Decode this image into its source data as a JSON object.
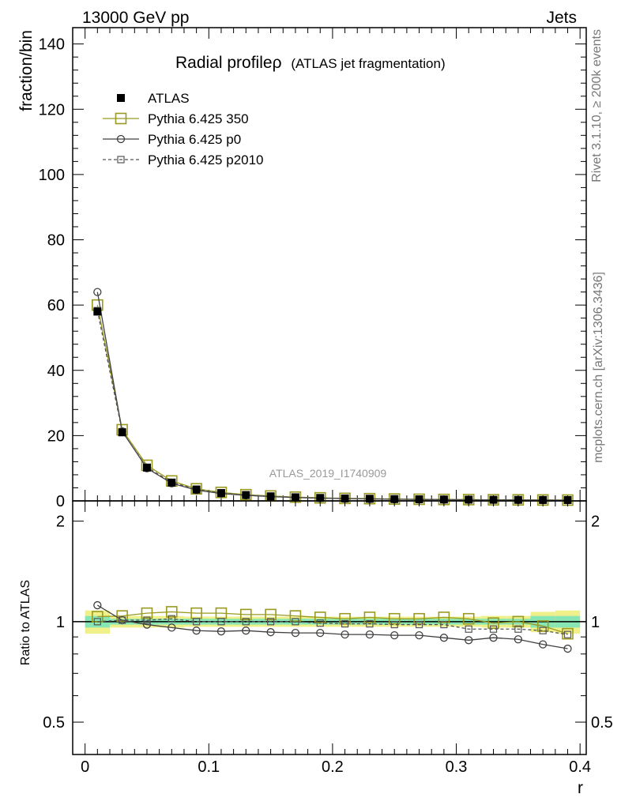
{
  "header": {
    "left": "13000 GeV pp",
    "right": "Jets"
  },
  "side_labels": {
    "top": "Rivet 3.1.10, ≥ 200k events",
    "bottom": "mcplots.cern.ch [arXiv:1306.3436]"
  },
  "chart_data": [
    {
      "type": "line",
      "title": "Radial profileρ",
      "subtitle": "(ATLAS jet fragmentation)",
      "watermark": "ATLAS_2019_I1740909",
      "ylabel": "fraction/bin",
      "xlabel": "",
      "xlim": [
        0,
        0.4
      ],
      "ylim": [
        0,
        145
      ],
      "y_ticks": [
        0,
        20,
        40,
        60,
        80,
        100,
        120,
        140
      ],
      "legend": [
        "ATLAS",
        "Pythia 6.425 350",
        "Pythia 6.425 p0",
        "Pythia 6.425 p2010"
      ],
      "legend_position": "top-left",
      "x": [
        0.01,
        0.03,
        0.05,
        0.07,
        0.09,
        0.11,
        0.13,
        0.15,
        0.17,
        0.19,
        0.21,
        0.23,
        0.25,
        0.27,
        0.29,
        0.31,
        0.33,
        0.35,
        0.37,
        0.39
      ],
      "series": [
        {
          "name": "ATLAS",
          "style": "data",
          "color": "#000000",
          "values": [
            58,
            21,
            10.2,
            5.6,
            3.5,
            2.4,
            1.8,
            1.4,
            1.1,
            0.9,
            0.75,
            0.65,
            0.55,
            0.48,
            0.42,
            0.38,
            0.34,
            0.31,
            0.28,
            0.26
          ]
        },
        {
          "name": "Pythia 6.425 350",
          "style": "big-square",
          "color": "#9a9a20",
          "values": [
            60,
            21.8,
            10.9,
            6.1,
            3.7,
            2.6,
            1.9,
            1.5,
            1.15,
            0.93,
            0.77,
            0.68,
            0.57,
            0.49,
            0.44,
            0.39,
            0.34,
            0.31,
            0.27,
            0.24
          ]
        },
        {
          "name": "Pythia 6.425 p0",
          "style": "circle",
          "color": "#404040",
          "values": [
            64,
            21.3,
            10.0,
            5.4,
            3.3,
            2.25,
            1.7,
            1.3,
            1.02,
            0.83,
            0.69,
            0.6,
            0.5,
            0.44,
            0.38,
            0.34,
            0.31,
            0.28,
            0.24,
            0.21
          ]
        },
        {
          "name": "Pythia 6.425 p2010",
          "style": "small-square-dashed",
          "color": "#555555",
          "values": [
            58.3,
            21.2,
            10.3,
            5.7,
            3.5,
            2.4,
            1.8,
            1.4,
            1.1,
            0.89,
            0.74,
            0.64,
            0.54,
            0.47,
            0.41,
            0.36,
            0.32,
            0.29,
            0.26,
            0.24
          ]
        }
      ]
    },
    {
      "type": "line",
      "xlabel": "r",
      "ylabel": "Ratio to ATLAS",
      "xlim": [
        0,
        0.4
      ],
      "ylim": [
        0.4,
        2.3
      ],
      "y_scale": "log",
      "y_ticks": [
        0.5,
        1,
        2
      ],
      "x_ticks": [
        0,
        0.1,
        0.2,
        0.3,
        0.4
      ],
      "x": [
        0.01,
        0.03,
        0.05,
        0.07,
        0.09,
        0.11,
        0.13,
        0.15,
        0.17,
        0.19,
        0.21,
        0.23,
        0.25,
        0.27,
        0.29,
        0.31,
        0.33,
        0.35,
        0.37,
        0.39
      ],
      "band_inner": [
        0.04,
        0.02,
        0.02,
        0.02,
        0.02,
        0.02,
        0.02,
        0.02,
        0.02,
        0.02,
        0.02,
        0.02,
        0.02,
        0.02,
        0.02,
        0.02,
        0.02,
        0.02,
        0.04,
        0.04
      ],
      "band_outer": [
        0.08,
        0.04,
        0.04,
        0.04,
        0.035,
        0.035,
        0.035,
        0.035,
        0.035,
        0.035,
        0.035,
        0.035,
        0.035,
        0.035,
        0.035,
        0.035,
        0.04,
        0.04,
        0.07,
        0.08
      ],
      "series": [
        {
          "name": "Pythia 6.425 350",
          "style": "big-square",
          "color": "#9a9a20",
          "values": [
            1.035,
            1.04,
            1.06,
            1.07,
            1.06,
            1.06,
            1.05,
            1.05,
            1.04,
            1.03,
            1.02,
            1.03,
            1.02,
            1.02,
            1.03,
            1.02,
            0.99,
            1.0,
            0.97,
            0.92
          ]
        },
        {
          "name": "Pythia 6.425 p0",
          "style": "circle",
          "color": "#404040",
          "values": [
            1.12,
            1.01,
            0.98,
            0.96,
            0.94,
            0.935,
            0.94,
            0.93,
            0.925,
            0.925,
            0.915,
            0.915,
            0.91,
            0.91,
            0.895,
            0.88,
            0.895,
            0.885,
            0.855,
            0.83
          ]
        },
        {
          "name": "Pythia 6.425 p2010",
          "style": "small-square-dashed",
          "color": "#555555",
          "values": [
            1.0,
            1.01,
            1.01,
            1.02,
            1.0,
            1.0,
            1.0,
            1.0,
            1.0,
            0.99,
            0.985,
            0.985,
            0.98,
            0.98,
            0.98,
            0.95,
            0.95,
            0.95,
            0.94,
            0.915
          ]
        }
      ]
    }
  ]
}
